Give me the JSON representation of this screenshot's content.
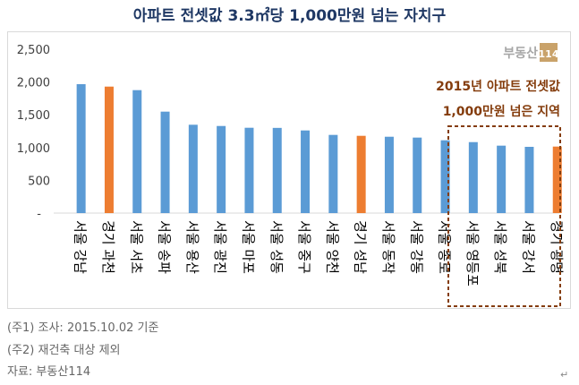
{
  "title": "아파트 전셋값 3.3㎡당 1,000만원 넘는 자치구",
  "notes": [
    "(주1) 조사: 2015.10.02 기준",
    "(주2) 재건축 대상 제외",
    "자료: 부동산114"
  ],
  "logo": {
    "text": "부동산",
    "badge": "114"
  },
  "annotation": [
    "2015년 아파트 전셋값",
    "1,000만원 넘은 지역"
  ],
  "colors": {
    "seoul": "#5b9bd5",
    "gyeonggi": "#ed7d31",
    "annotation": "#843c0c",
    "title": "#1f3864"
  },
  "chart_data": {
    "type": "bar",
    "title": "아파트 전셋값 3.3㎡당 1,000만원 넘는 자치구",
    "categories": [
      "서울 강남",
      "경기 과천",
      "서울 서초",
      "서울 송파",
      "서울 용산",
      "서울 광진",
      "서울 마포",
      "서울 성동",
      "서울 중구",
      "서울 양천",
      "경기 성남",
      "서울 동작",
      "서울 강동",
      "서울 종로",
      "서울 영등포",
      "서울 성북",
      "서울 강서",
      "경기 광명"
    ],
    "values": [
      1967,
      1930,
      1876,
      1548,
      1348,
      1329,
      1302,
      1300,
      1261,
      1193,
      1179,
      1165,
      1152,
      1111,
      1083,
      1029,
      1011,
      1015
    ],
    "ylim": [
      0,
      2500
    ],
    "yticks": [
      "-",
      "500",
      "1,000",
      "1,500",
      "2,000",
      "2,500"
    ],
    "grid": false,
    "highlighted_range": [
      "서울 영등포",
      "경기 광명"
    ]
  }
}
